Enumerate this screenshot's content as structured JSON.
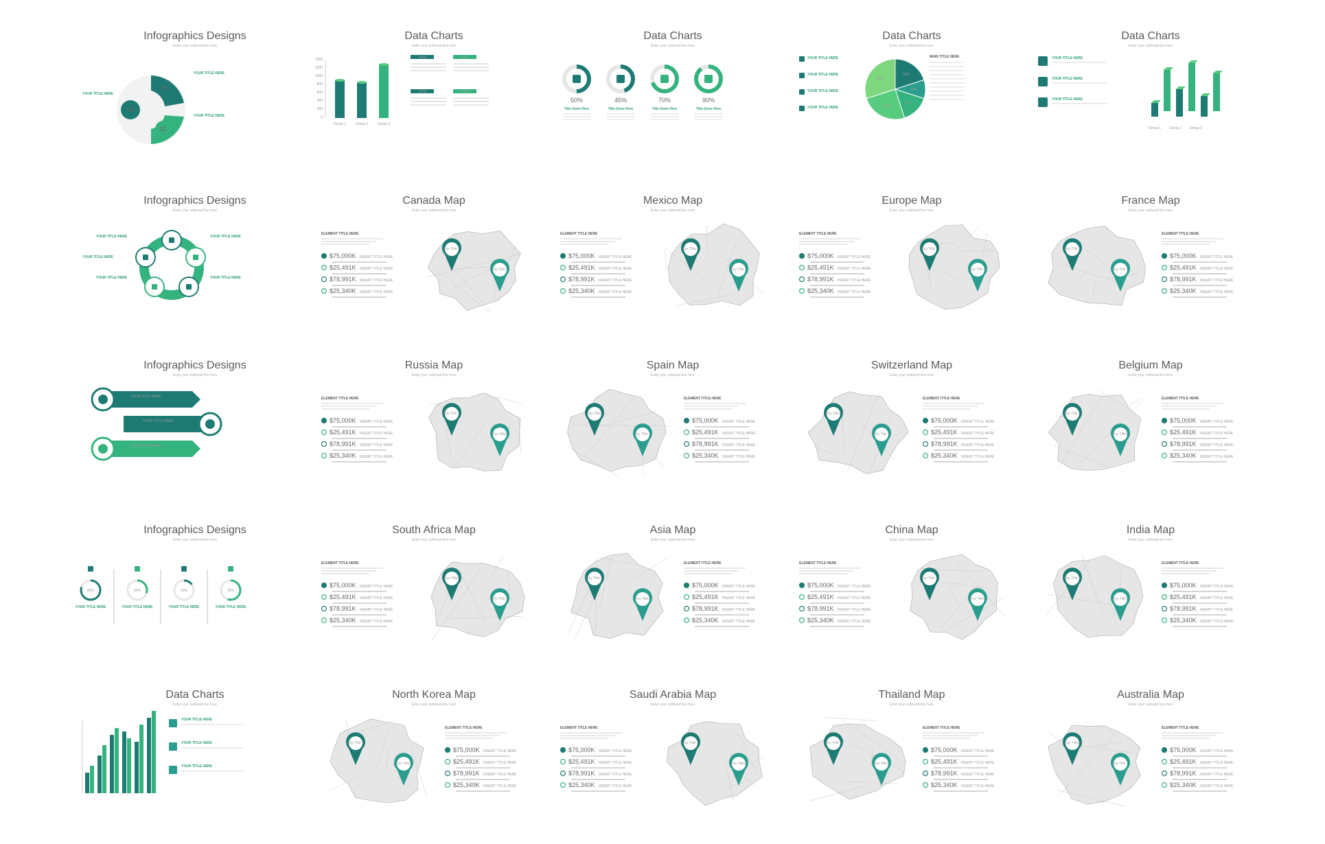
{
  "colors": {
    "teal": "#1e7b74",
    "green": "#35b37e",
    "light_green": "#58cc7e",
    "mid": "#2a9d8f",
    "gray_map": "#e6e6e6"
  },
  "slides": [
    {
      "title": "Infographics Designs",
      "sub": "Enter your subhead line here",
      "type": "info-circle",
      "labels": {
        "n1": "01",
        "n2": "02",
        "n3": "03",
        "t": "YOUR TITLE HERE"
      }
    },
    {
      "title": "Data Charts",
      "sub": "Enter your subhead line here",
      "type": "cyl-bars",
      "groups": [
        "Group 1",
        "Group 2",
        "Group 3"
      ],
      "yticks": [
        "1400",
        "1200",
        "1000",
        "800",
        "600",
        "400",
        "200",
        "0"
      ],
      "years": [
        "2016",
        "2017",
        "2018",
        "2019"
      ]
    },
    {
      "title": "Data Charts",
      "sub": "Enter your subhead line here",
      "type": "donuts",
      "items": [
        {
          "pct": "50%",
          "title": "Title Goes Here",
          "value": 0.5
        },
        {
          "pct": "45%",
          "title": "Title Goes Here",
          "value": 0.45
        },
        {
          "pct": "70%",
          "title": "Title Goes Here",
          "value": 0.7
        },
        {
          "pct": "90%",
          "title": "Title Goes Here",
          "value": 0.9
        }
      ]
    },
    {
      "title": "Data Charts",
      "sub": "Enter your subhead line here",
      "type": "pie",
      "slices": [
        "20%",
        "10%",
        "15%",
        "25%",
        "30%"
      ],
      "main_title": "MAIN TITLE HERE",
      "t": "YOUR TITLE HERE"
    },
    {
      "title": "Data Charts",
      "sub": "Enter your subhead line here",
      "type": "bars3d",
      "groups": [
        "Group 1",
        "Group 2",
        "Group 3"
      ],
      "t": "YOUR TITLE HERE"
    },
    {
      "title": "Infographics Designs",
      "sub": "Enter your subhead line here",
      "type": "cycle",
      "t": "YOUR TITLE HERE"
    },
    {
      "title": "Canada Map",
      "sub": "Enter your subhead line here",
      "type": "map",
      "layout": "left",
      "keys": [
        "Key Title 1",
        "Key Title 2"
      ]
    },
    {
      "title": "Mexico Map",
      "sub": "Enter your subhead line here",
      "type": "map",
      "layout": "left",
      "keys": [
        "Key Title 1",
        "Key Title 2"
      ]
    },
    {
      "title": "Europe Map",
      "sub": "Enter your subhead line here",
      "type": "map",
      "layout": "left",
      "keys": [
        "Key Title 1",
        "Key Title 2"
      ]
    },
    {
      "title": "France Map",
      "sub": "Enter your subhead line here",
      "type": "map",
      "layout": "right",
      "keys": [
        "Key Title 1",
        "Key Title 2"
      ]
    },
    {
      "title": "Infographics Designs",
      "sub": "Enter your subhead line here",
      "type": "arrows",
      "t": "YOUR TITLE HERE"
    },
    {
      "title": "Russia Map",
      "sub": "Enter your subhead line here",
      "type": "map",
      "layout": "left",
      "keys": [
        "Key Title 1",
        "Key Title2"
      ]
    },
    {
      "title": "Spain Map",
      "sub": "Enter your subhead line here",
      "type": "map",
      "layout": "right",
      "keys": [
        "Key Title2",
        "Key Title 1"
      ]
    },
    {
      "title": "Switzerland Map",
      "sub": "Enter your subhead line here",
      "type": "map",
      "layout": "right",
      "keys": [
        "Key Title2",
        "Key Title 1"
      ]
    },
    {
      "title": "Belgium Map",
      "sub": "Enter your subhead line here",
      "type": "map",
      "layout": "right",
      "keys": [
        "Key Title 1",
        "Key Title2"
      ]
    },
    {
      "title": "Infographics Designs",
      "sub": "Enter your subhead line here",
      "type": "rings",
      "items": [
        "80%",
        "30%",
        "15%",
        "55%"
      ],
      "t": "YOUR TITLE HERE"
    },
    {
      "title": "South Africa Map",
      "sub": "Enter your subhead line here",
      "type": "map",
      "layout": "left",
      "keys": [
        "Key Title2",
        "Key Title 1"
      ]
    },
    {
      "title": "Asia Map",
      "sub": "Enter your subhead line here",
      "type": "map",
      "layout": "right",
      "keys": [
        "Key Title 1",
        "Key Title2"
      ]
    },
    {
      "title": "China Map",
      "sub": "Enter your subhead line here",
      "type": "map",
      "layout": "left",
      "keys": [
        "Key Title 1",
        "Key Title2"
      ]
    },
    {
      "title": "India Map",
      "sub": "Enter your subhead line here",
      "type": "map",
      "layout": "right",
      "keys": [
        "Key Title 1",
        "Key Title2"
      ]
    },
    {
      "title": "Data Charts",
      "sub": "Enter your subhead line here",
      "type": "bars2d",
      "t": "YOUR TITLE HERE"
    },
    {
      "title": "North Korea Map",
      "sub": "Enter your subhead line here",
      "type": "map",
      "layout": "right",
      "keys": [
        "Key Title 1",
        "Key Title2"
      ]
    },
    {
      "title": "Saudi Arabia Map",
      "sub": "Enter your subhead line here",
      "type": "map",
      "layout": "left",
      "keys": [
        "Key Title 1",
        "Key Title2"
      ]
    },
    {
      "title": "Thailand Map",
      "sub": "Enter your subhead line here",
      "type": "map",
      "layout": "right",
      "keys": [
        "Key Title 1",
        "Key Title2"
      ]
    },
    {
      "title": "Australia Map",
      "sub": "Enter your subhead line here",
      "type": "map",
      "layout": "right",
      "keys": [
        "Key Title2",
        "Key Title 1"
      ]
    }
  ],
  "map_panel": {
    "element_title": "ELEMENT TITLE HERE",
    "values": [
      "$75,000K",
      "$25,491K",
      "$78,991K",
      "$25,340K"
    ],
    "insert": "INSERT TITLE HERE"
  }
}
